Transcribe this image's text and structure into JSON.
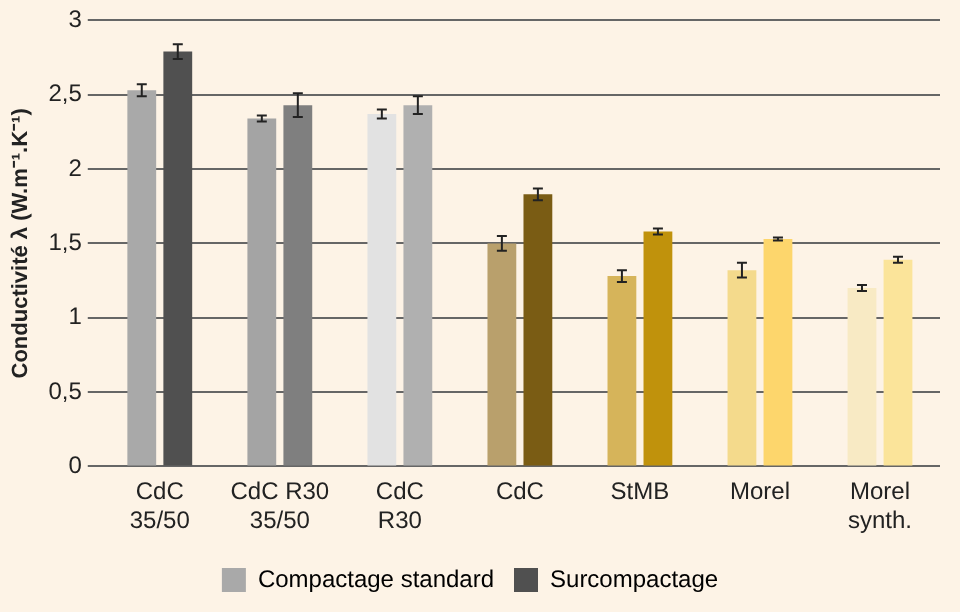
{
  "chart_data": {
    "type": "bar",
    "ylabel": "Conductivité λ (W.m⁻¹.K⁻¹)",
    "categories": [
      "CdC 35/50",
      "CdC R30 35/50",
      "CdC R30",
      "CdC",
      "StMB",
      "Morel",
      "Morel synth."
    ],
    "series": [
      {
        "name": "Compactage standard",
        "colors": [
          "#a9a9a9",
          "#a4a4a4",
          "#e2e2e2",
          "#b9a06c",
          "#d6b45a",
          "#f4da8c",
          "#f8eac4"
        ],
        "values": [
          2.53,
          2.34,
          2.37,
          1.5,
          1.28,
          1.32,
          1.2
        ],
        "errors": [
          0.04,
          0.02,
          0.03,
          0.05,
          0.04,
          0.05,
          0.02
        ]
      },
      {
        "name": "Surcompactage",
        "colors": [
          "#505050",
          "#7f7f7f",
          "#b0b0b0",
          "#7a5c14",
          "#c0920c",
          "#fdd66c",
          "#fbe49a"
        ],
        "values": [
          2.79,
          2.43,
          2.43,
          1.83,
          1.58,
          1.53,
          1.39
        ],
        "errors": [
          0.05,
          0.08,
          0.06,
          0.04,
          0.02,
          0.01,
          0.02
        ]
      }
    ],
    "ylim": [
      0,
      3
    ],
    "yticks": [
      {
        "value": 0,
        "label": "0"
      },
      {
        "value": 0.5,
        "label": "0,5"
      },
      {
        "value": 1,
        "label": "1"
      },
      {
        "value": 1.5,
        "label": "1,5"
      },
      {
        "value": 2,
        "label": "2"
      },
      {
        "value": 2.5,
        "label": "2,5"
      },
      {
        "value": 3,
        "label": "3"
      }
    ],
    "grid": "y",
    "legend": "bottom"
  }
}
